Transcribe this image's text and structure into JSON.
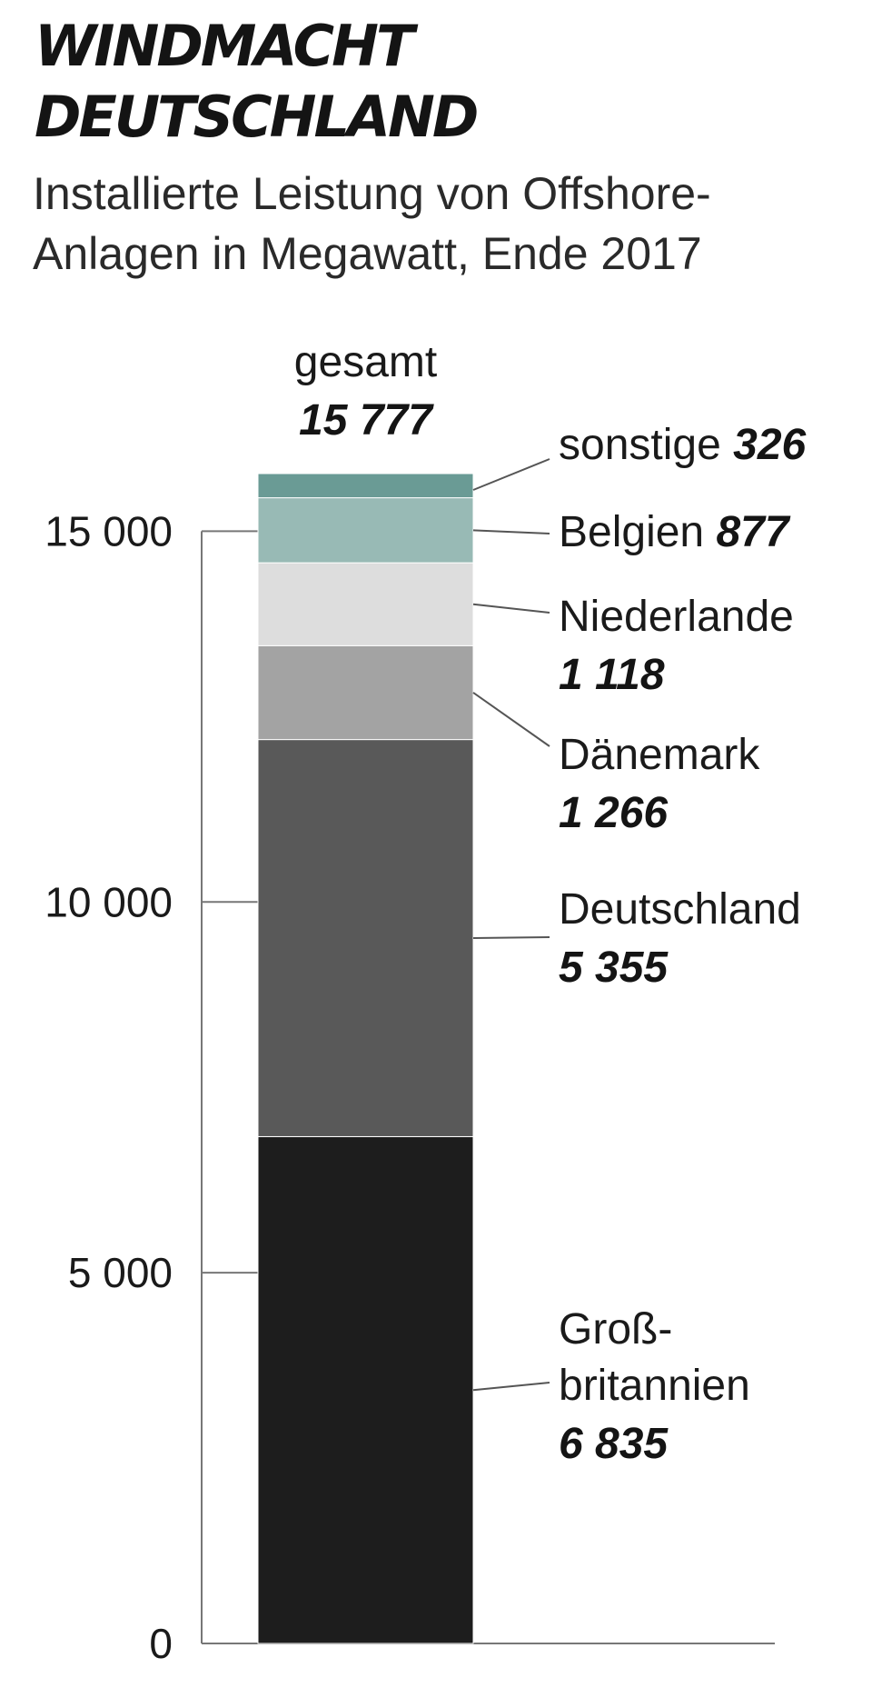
{
  "title": [
    "WINDMACHT",
    "DEUTSCHLAND"
  ],
  "subtitle": [
    "Installierte Leistung von Offshore-",
    "Anlagen in Megawatt, Ende 2017"
  ],
  "chart_data": {
    "type": "bar",
    "stacked": true,
    "title": "WINDMACHT DEUTSCHLAND",
    "subtitle": "Installierte Leistung von Offshore-Anlagen in Megawatt, Ende 2017",
    "ylim": [
      0,
      15777
    ],
    "yticks": [
      0,
      5000,
      10000,
      15000
    ],
    "ytick_labels": [
      "0",
      "5 000",
      "10 000",
      "15 000"
    ],
    "total_label": "gesamt",
    "total": 15777,
    "total_display": "15 777",
    "series": [
      {
        "name": "Großbritannien",
        "label_lines": [
          "Groß-",
          "britannien"
        ],
        "value": 6835,
        "value_display": "6 835",
        "color": "#1d1d1d"
      },
      {
        "name": "Deutschland",
        "label_lines": [
          "Deutschland"
        ],
        "value": 5355,
        "value_display": "5 355",
        "color": "#595959"
      },
      {
        "name": "Dänemark",
        "label_lines": [
          "Dänemark"
        ],
        "value": 1266,
        "value_display": "1 266",
        "color": "#a3a3a3"
      },
      {
        "name": "Niederlande",
        "label_lines": [
          "Niederlande"
        ],
        "value": 1118,
        "value_display": "1 118",
        "color": "#dddddd"
      },
      {
        "name": "Belgien",
        "label_lines": [
          "Belgien"
        ],
        "value": 877,
        "value_display": "877",
        "color": "#98bab5"
      },
      {
        "name": "sonstige",
        "label_lines": [
          "sonstige"
        ],
        "value": 326,
        "value_display": "326",
        "color": "#6a9b95"
      }
    ]
  }
}
